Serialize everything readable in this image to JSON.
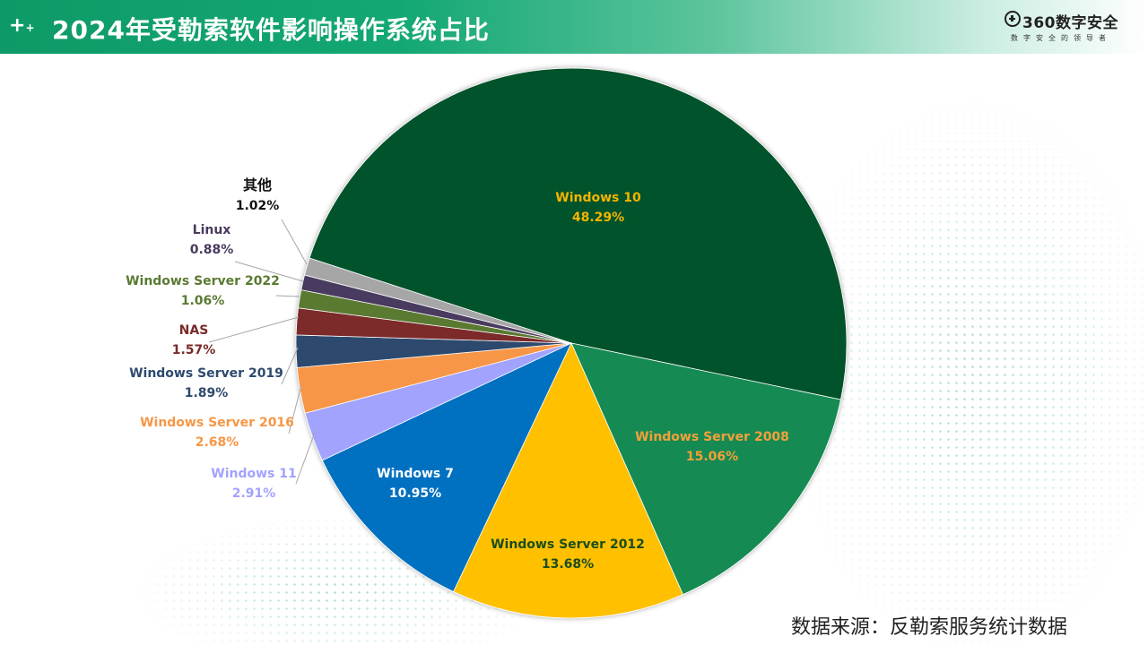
{
  "header": {
    "plus_icon": "plus-icon",
    "title": "2024年受勒索软件影响操作系统占比",
    "logo_text": "360数字安全",
    "logo_tagline": "数字安全的领导者"
  },
  "source_note": "数据来源：反勒索服务统计数据",
  "chart_data": {
    "type": "pie",
    "title": "2024年受勒索软件影响操作系统占比",
    "unit": "%",
    "start_angle_deg": -162,
    "slices": [
      {
        "label": "Windows 10",
        "value": 48.29,
        "value_text": "48.29%",
        "color": "#04522a",
        "label_color": "#f4b400"
      },
      {
        "label": "Windows Server 2008",
        "value": 15.06,
        "value_text": "15.06%",
        "color": "#158a52",
        "label_color": "#f4a03a"
      },
      {
        "label": "Windows Server 2012",
        "value": 13.68,
        "value_text": "13.68%",
        "color": "#ffc000",
        "label_color": "#1a4d1a"
      },
      {
        "label": "Windows 7",
        "value": 10.95,
        "value_text": "10.95%",
        "color": "#0070c0",
        "label_color": "#ffffff"
      },
      {
        "label": "Windows 11",
        "value": 2.91,
        "value_text": "2.91%",
        "color": "#a2a2ff",
        "label_color": "#a2a2ff"
      },
      {
        "label": "Windows Server 2016",
        "value": 2.68,
        "value_text": "2.68%",
        "color": "#f79646",
        "label_color": "#f79646"
      },
      {
        "label": "Windows Server 2019",
        "value": 1.89,
        "value_text": "1.89%",
        "color": "#2e4a6e",
        "label_color": "#2e4a6e"
      },
      {
        "label": "NAS",
        "value": 1.57,
        "value_text": "1.57%",
        "color": "#7b2a2a",
        "label_color": "#7b2a2a"
      },
      {
        "label": "Windows Server 2022",
        "value": 1.06,
        "value_text": "1.06%",
        "color": "#5a7a32",
        "label_color": "#5a7a32"
      },
      {
        "label": "Linux",
        "value": 0.88,
        "value_text": "0.88%",
        "color": "#4a3a5e",
        "label_color": "#4a3a5e"
      },
      {
        "label": "其他",
        "value": 1.02,
        "value_text": "1.02%",
        "color": "#a6a6a6",
        "label_color": "#111111"
      }
    ]
  }
}
